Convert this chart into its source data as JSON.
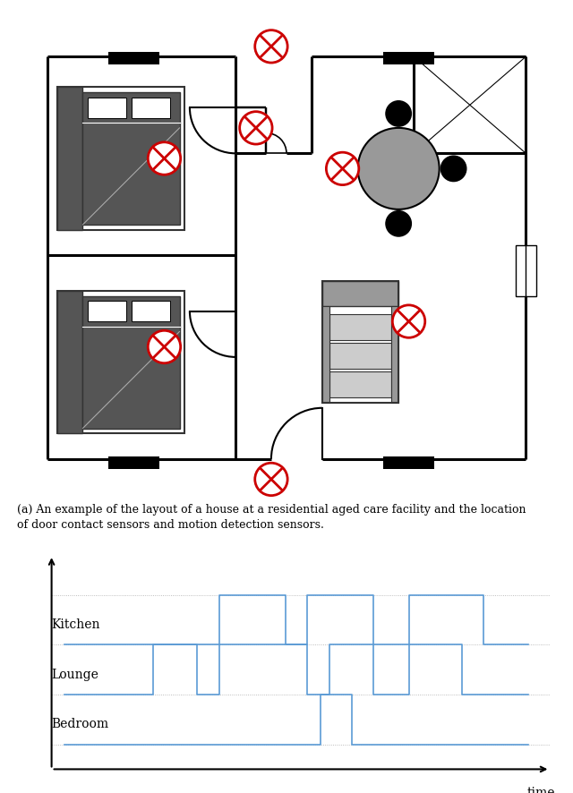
{
  "caption_line1": "(a) An example of the layout of a house at a residential aged care facility and the location",
  "caption_line2": "of door contact sensors and motion detection sensors.",
  "time_label": "time",
  "room_labels": [
    "Kitchen",
    "Lounge",
    "Bedroom"
  ],
  "signal_color": "#5b9bd5",
  "grid_color": "#aaaaaa",
  "bg_color": "#ffffff",
  "wall_lw": 2.2,
  "sensor_color": "#cc0000",
  "furniture_dark": "#555555",
  "furniture_mid": "#999999",
  "furniture_light": "#cccccc",
  "furniture_border": "#333333"
}
